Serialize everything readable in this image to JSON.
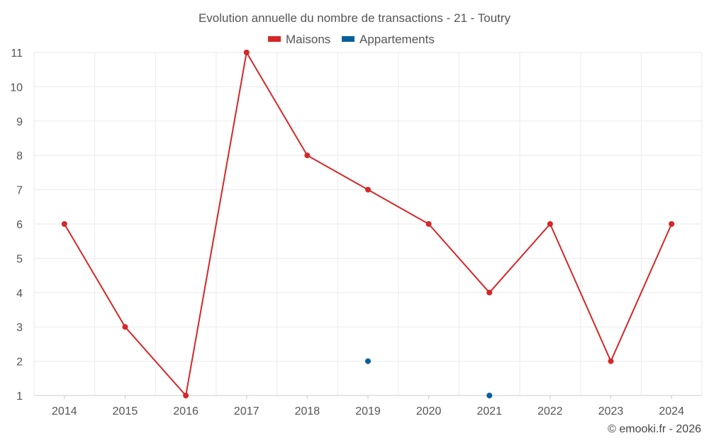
{
  "chart_data": {
    "type": "line",
    "title": "Evolution annuelle du nombre de transactions - 21 - Toutry",
    "categories": [
      "2014",
      "2015",
      "2016",
      "2017",
      "2018",
      "2019",
      "2020",
      "2021",
      "2022",
      "2023",
      "2024"
    ],
    "series": [
      {
        "name": "Maisons",
        "color": "#d62728",
        "values": [
          6,
          3,
          1,
          11,
          8,
          7,
          6,
          4,
          6,
          2,
          6
        ]
      },
      {
        "name": "Appartements",
        "color": "#08609b",
        "values": [
          null,
          null,
          null,
          null,
          null,
          2,
          null,
          1,
          null,
          null,
          null
        ]
      }
    ],
    "yticks": [
      "1",
      "2",
      "3",
      "4",
      "5",
      "6",
      "7",
      "8",
      "9",
      "10",
      "11"
    ],
    "ylim": [
      1,
      11
    ],
    "xlabel": "",
    "ylabel": "",
    "grid": true,
    "legend_position": "top-center"
  },
  "credit": "© emooki.fr - 2026"
}
